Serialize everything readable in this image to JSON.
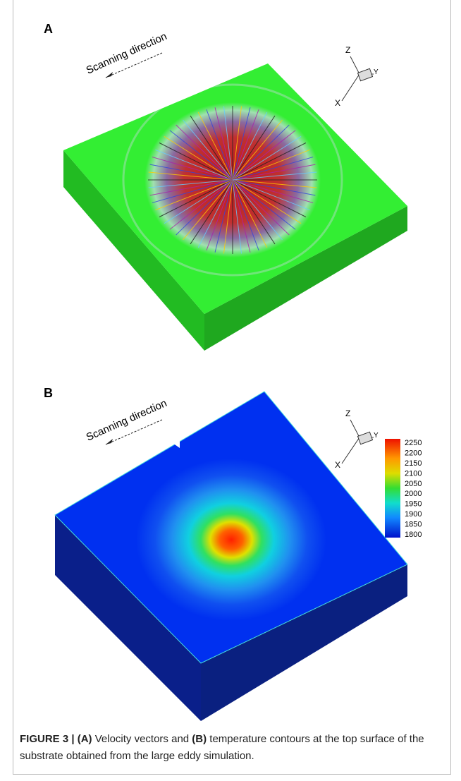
{
  "panels": [
    {
      "label": "A",
      "annotation": "Scanning direction",
      "axes": {
        "z": "Z",
        "y": "Y",
        "x": "X"
      }
    },
    {
      "label": "B",
      "annotation": "Scanning direction",
      "axes": {
        "z": "Z",
        "y": "Y",
        "x": "X"
      },
      "colorbar": {
        "ticks": [
          2250,
          2200,
          2150,
          2100,
          2050,
          2000,
          1950,
          1900,
          1850,
          1800
        ]
      }
    }
  ],
  "caption": {
    "label": "FIGURE 3 |",
    "part_a": "(A)",
    "text_a": "Velocity vectors and",
    "part_b": "(B)",
    "text_b": "temperature contours at the top surface of the substrate obtained from the large eddy simulation."
  }
}
